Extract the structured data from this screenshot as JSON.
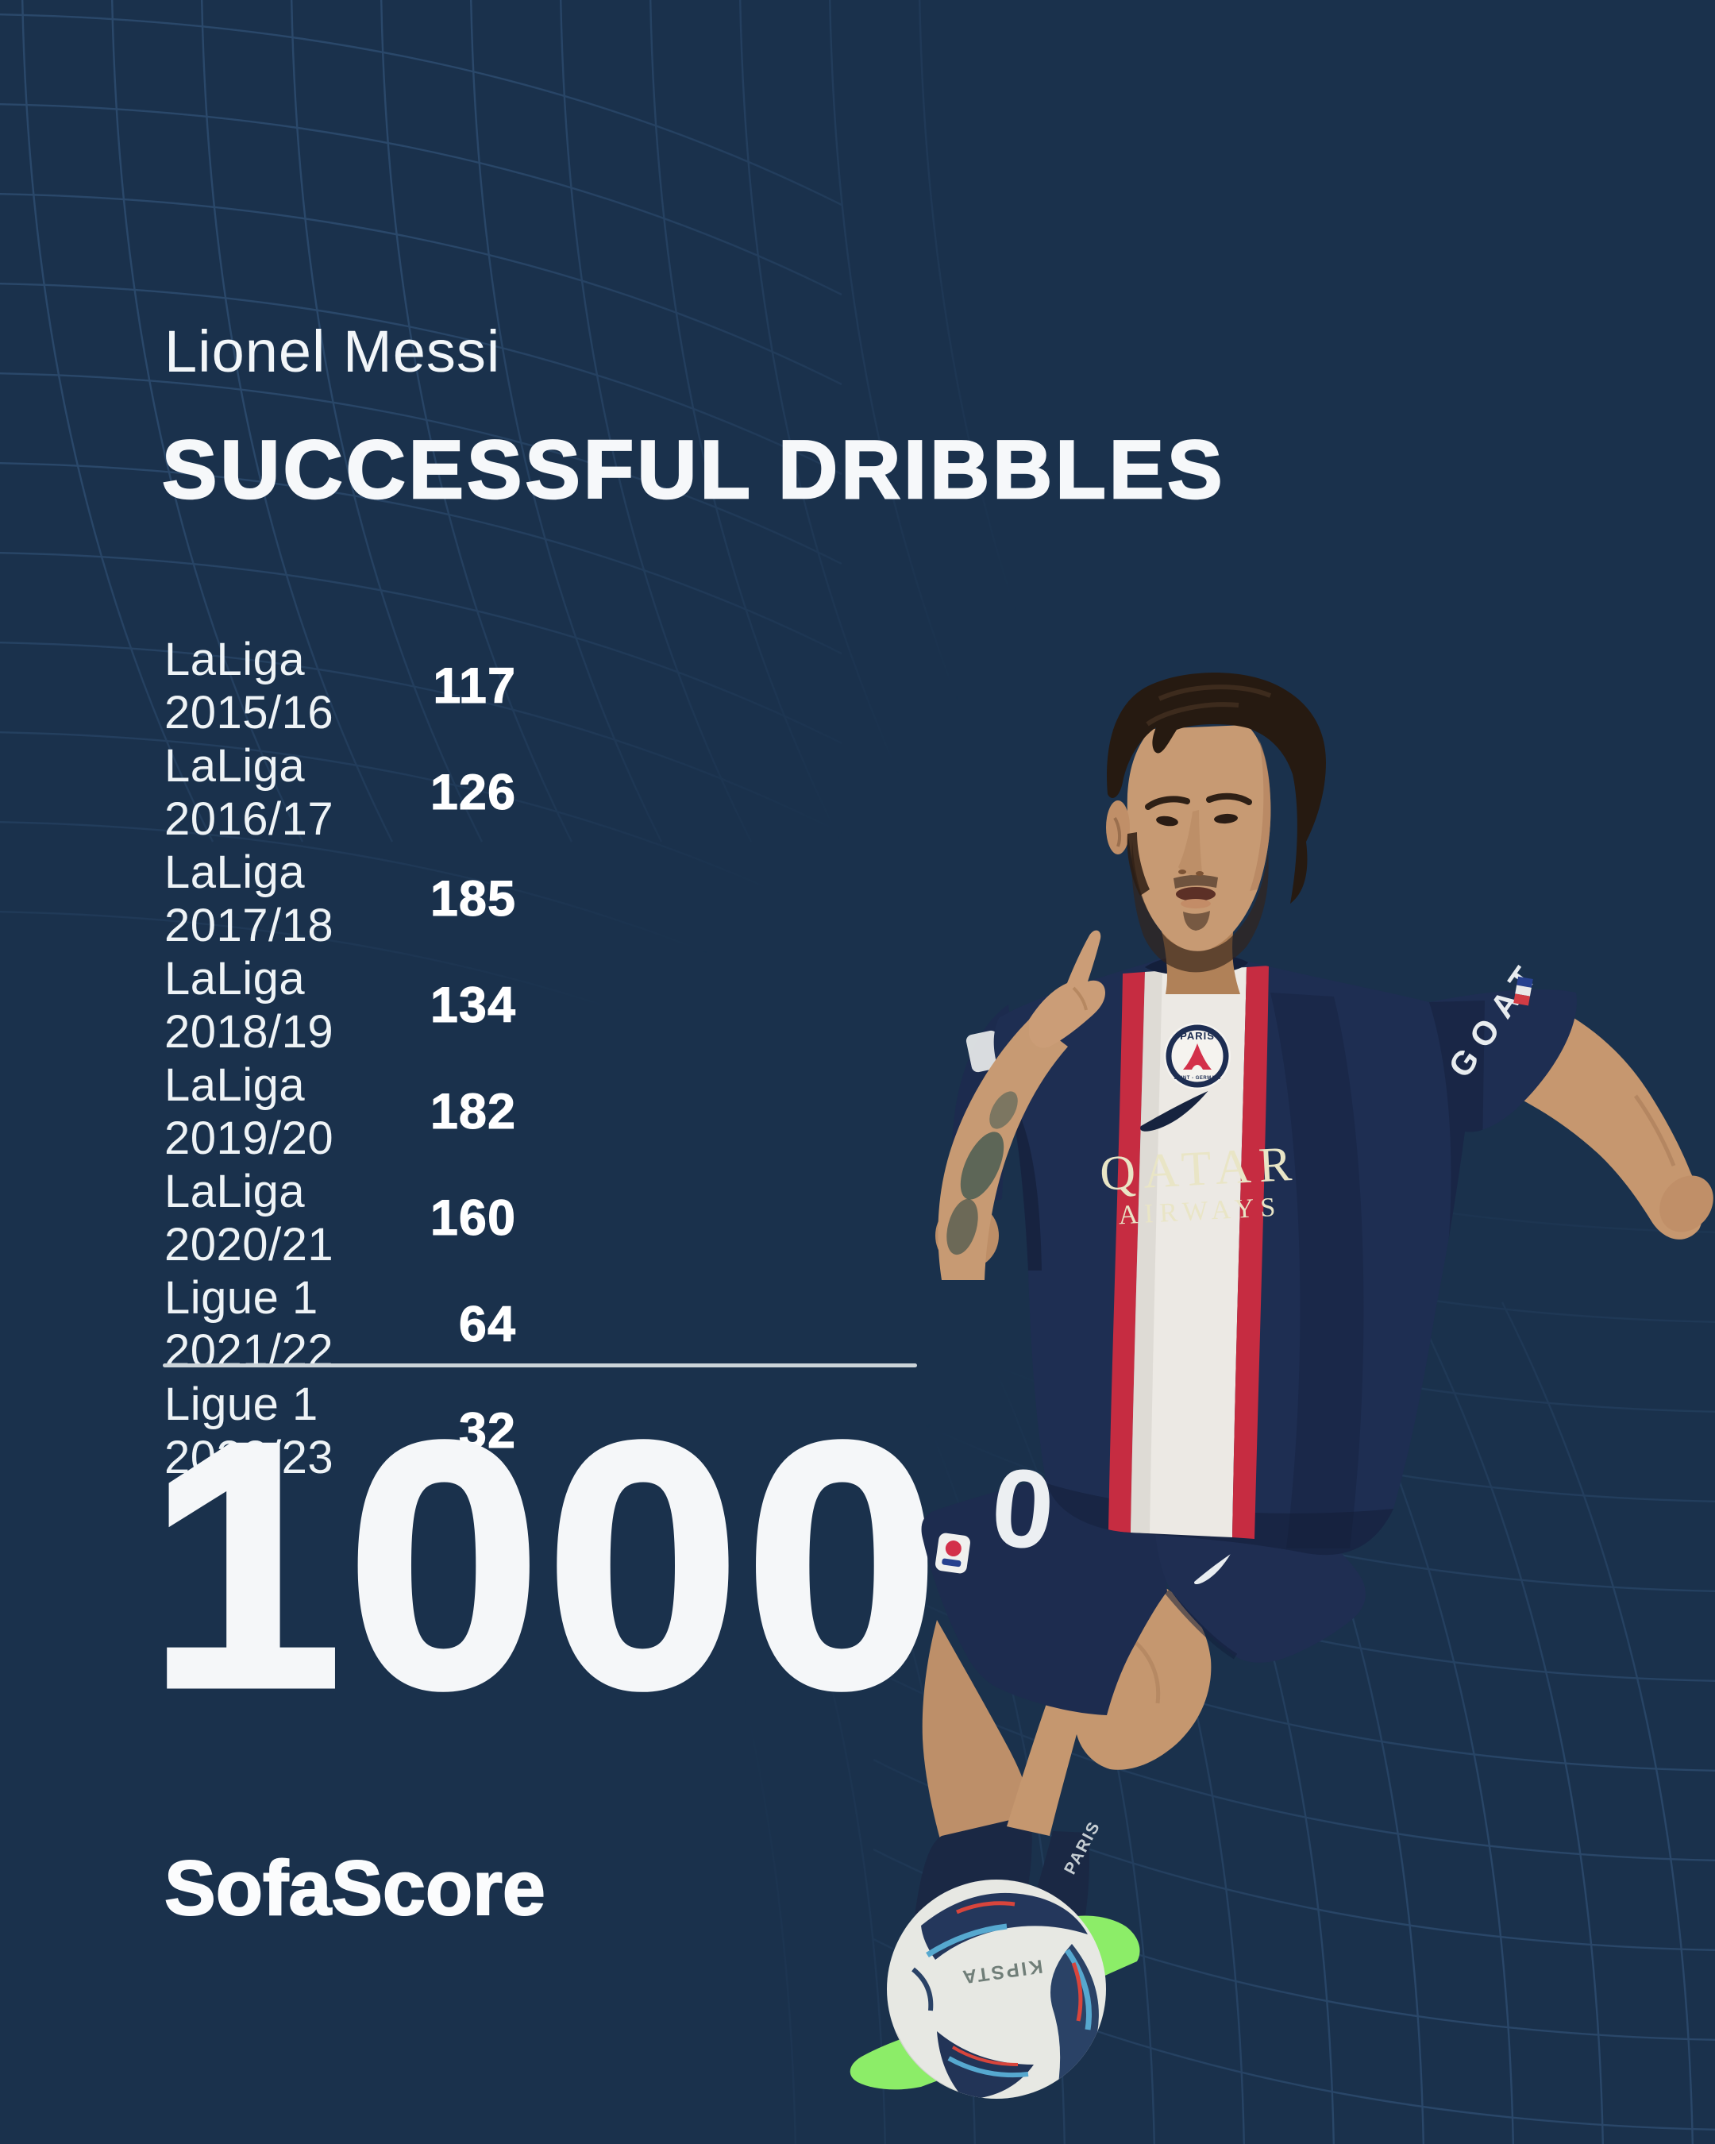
{
  "colors": {
    "background": "#1a314c",
    "mesh_line": "#3f6590",
    "divider": "#ccd4d9",
    "text_primary": "#f5f7f9",
    "jersey_navy": "#1e2e52",
    "jersey_red": "#c62c41",
    "jersey_white": "#ece9e4",
    "sponsor_cream": "#e9e5c6",
    "boot_green": "#8ced68"
  },
  "header": {
    "player_name": "Lionel Messi",
    "title": "SUCCESSFUL DRIBBLES"
  },
  "stats": [
    {
      "label": "LaLiga 2015/16",
      "value": "117"
    },
    {
      "label": "LaLiga 2016/17",
      "value": "126"
    },
    {
      "label": "LaLiga 2017/18",
      "value": "185"
    },
    {
      "label": "LaLiga 2018/19",
      "value": "134"
    },
    {
      "label": "LaLiga 2019/20",
      "value": "182"
    },
    {
      "label": "LaLiga 2020/21",
      "value": "160"
    },
    {
      "label": "Ligue 1 2021/22",
      "value": "64"
    },
    {
      "label": "Ligue 1 2022/23",
      "value": "32"
    }
  ],
  "total": {
    "value": "1000"
  },
  "footer": {
    "brand": "SofaScore"
  },
  "photo": {
    "jersey": {
      "crest_top": "PARIS",
      "crest_bottom": "SAINT - GERMAIN",
      "sponsor_line1": "QATAR",
      "sponsor_line2": "AIRWAYS",
      "sleeve_text": "GOAT"
    },
    "shorts_number": "0",
    "sock_text": "PARIS",
    "ball_brand": "KIPSTA"
  },
  "chart_data": {
    "type": "table",
    "title": "Successful dribbles",
    "subject": "Lionel Messi",
    "categories": [
      "LaLiga 2015/16",
      "LaLiga 2016/17",
      "LaLiga 2017/18",
      "LaLiga 2018/19",
      "LaLiga 2019/20",
      "LaLiga 2020/21",
      "Ligue 1 2021/22",
      "Ligue 1 2022/23"
    ],
    "values": [
      117,
      126,
      185,
      134,
      182,
      160,
      64,
      32
    ],
    "total": 1000
  }
}
